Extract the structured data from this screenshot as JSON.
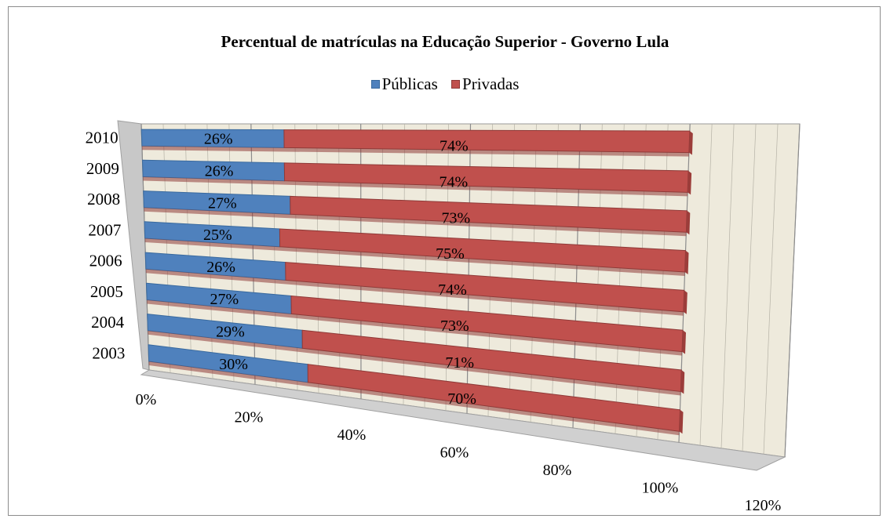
{
  "chart_data": {
    "type": "bar",
    "orientation": "horizontal",
    "stacked": true,
    "three_d": true,
    "title": "Percentual de matrículas na Educação Superior - Governo Lula",
    "categories": [
      "2003",
      "2004",
      "2005",
      "2006",
      "2007",
      "2008",
      "2009",
      "2010"
    ],
    "series": [
      {
        "name": "Públicas",
        "values": [
          30,
          29,
          27,
          26,
          25,
          27,
          26,
          26
        ],
        "labels": [
          "30%",
          "29%",
          "27%",
          "26%",
          "25%",
          "27%",
          "26%",
          "26%"
        ],
        "color": "#4f81bd"
      },
      {
        "name": "Privadas",
        "values": [
          70,
          71,
          73,
          74,
          75,
          73,
          74,
          74
        ],
        "labels": [
          "70%",
          "71%",
          "73%",
          "74%",
          "75%",
          "73%",
          "74%",
          "74%"
        ],
        "color": "#c0504d"
      }
    ],
    "x_ticks": [
      "0%",
      "20%",
      "40%",
      "60%",
      "80%",
      "100%",
      "120%"
    ],
    "xlim": [
      0,
      120
    ],
    "legend_position": "top",
    "grid": true
  }
}
